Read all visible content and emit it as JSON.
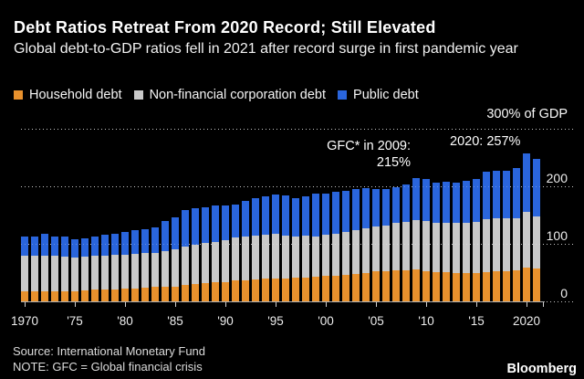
{
  "header": {
    "title": "Debt Ratios Retreat From 2020 Record; Still Elevated",
    "subtitle": "Global debt-to-GDP ratios fell in 2021 after record surge in first pandemic year"
  },
  "legend": {
    "items": [
      {
        "label": "Household debt",
        "color": "#E8912D"
      },
      {
        "label": "Non-financial corporation debt",
        "color": "#C9C9C9"
      },
      {
        "label": "Public debt",
        "color": "#2A65DC"
      }
    ]
  },
  "axis": {
    "unit_label": "300% of GDP",
    "y_labels": [
      {
        "label": "200",
        "value": 200
      },
      {
        "label": "100",
        "value": 100
      },
      {
        "label": "0",
        "value": 0
      }
    ],
    "x_ticks": [
      {
        "label": "1970",
        "year": 1970
      },
      {
        "label": "'75",
        "year": 1975
      },
      {
        "label": "'80",
        "year": 1980
      },
      {
        "label": "'85",
        "year": 1985
      },
      {
        "label": "'90",
        "year": 1990
      },
      {
        "label": "'95",
        "year": 1995
      },
      {
        "label": "'00",
        "year": 2000
      },
      {
        "label": "'05",
        "year": 2005
      },
      {
        "label": "'10",
        "year": 2010
      },
      {
        "label": "'15",
        "year": 2015
      },
      {
        "label": "2020",
        "year": 2020
      }
    ]
  },
  "annotations": {
    "gfc_line1": "GFC* in 2009:",
    "gfc_line2": "215%",
    "peak": "2020: 257%"
  },
  "footer": {
    "source": "Source: International Monetary Fund",
    "note": "NOTE: GFC = Global financial crisis",
    "brand": "Bloomberg"
  },
  "chart_data": {
    "type": "bar",
    "stacked": true,
    "title": "Debt Ratios Retreat From 2020 Record; Still Elevated",
    "ylabel": "% of GDP",
    "ylim": [
      0,
      300
    ],
    "y_gridlines": [
      0,
      100,
      200,
      300
    ],
    "grid": "dotted-horizontal",
    "legend_position": "top",
    "categories": [
      1970,
      1971,
      1972,
      1973,
      1974,
      1975,
      1976,
      1977,
      1978,
      1979,
      1980,
      1981,
      1982,
      1983,
      1984,
      1985,
      1986,
      1987,
      1988,
      1989,
      1990,
      1991,
      1992,
      1993,
      1994,
      1995,
      1996,
      1997,
      1998,
      1999,
      2000,
      2001,
      2002,
      2003,
      2004,
      2005,
      2006,
      2007,
      2008,
      2009,
      2010,
      2011,
      2012,
      2013,
      2014,
      2015,
      2016,
      2017,
      2018,
      2019,
      2020,
      2021
    ],
    "series": [
      {
        "name": "Household debt",
        "color": "#E8912D",
        "values": [
          17,
          17,
          18,
          18,
          18,
          18,
          19,
          20,
          21,
          21,
          22,
          23,
          24,
          25,
          26,
          26,
          28,
          30,
          32,
          33,
          34,
          36,
          37,
          38,
          39,
          40,
          40,
          41,
          42,
          43,
          44,
          45,
          46,
          48,
          50,
          52,
          53,
          54,
          54,
          55,
          53,
          51,
          51,
          50,
          50,
          50,
          51,
          52,
          52,
          54,
          58,
          57
        ]
      },
      {
        "name": "Non-financial corporation debt",
        "color": "#C9C9C9",
        "values": [
          62,
          62,
          62,
          61,
          60,
          59,
          59,
          59,
          59,
          60,
          59,
          59,
          60,
          59,
          61,
          65,
          67,
          69,
          69,
          71,
          72,
          75,
          75,
          77,
          77,
          77,
          75,
          72,
          72,
          70,
          72,
          73,
          74,
          76,
          77,
          78,
          79,
          82,
          84,
          87,
          86,
          85,
          86,
          86,
          87,
          88,
          92,
          92,
          92,
          91,
          97,
          91
        ]
      },
      {
        "name": "Public debt",
        "color": "#2A65DC",
        "values": [
          33,
          34,
          37,
          34,
          34,
          31,
          32,
          34,
          36,
          37,
          39,
          42,
          42,
          45,
          52,
          55,
          64,
          63,
          62,
          62,
          60,
          58,
          63,
          64,
          66,
          69,
          69,
          67,
          68,
          75,
          71,
          72,
          72,
          71,
          70,
          66,
          64,
          63,
          65,
          73,
          73,
          71,
          71,
          71,
          72,
          75,
          82,
          83,
          83,
          86,
          102,
          99
        ]
      }
    ],
    "annotations": [
      {
        "year": 2009,
        "total": 215,
        "text": "GFC* in 2009: 215%"
      },
      {
        "year": 2020,
        "total": 257,
        "text": "2020: 257%"
      }
    ]
  }
}
